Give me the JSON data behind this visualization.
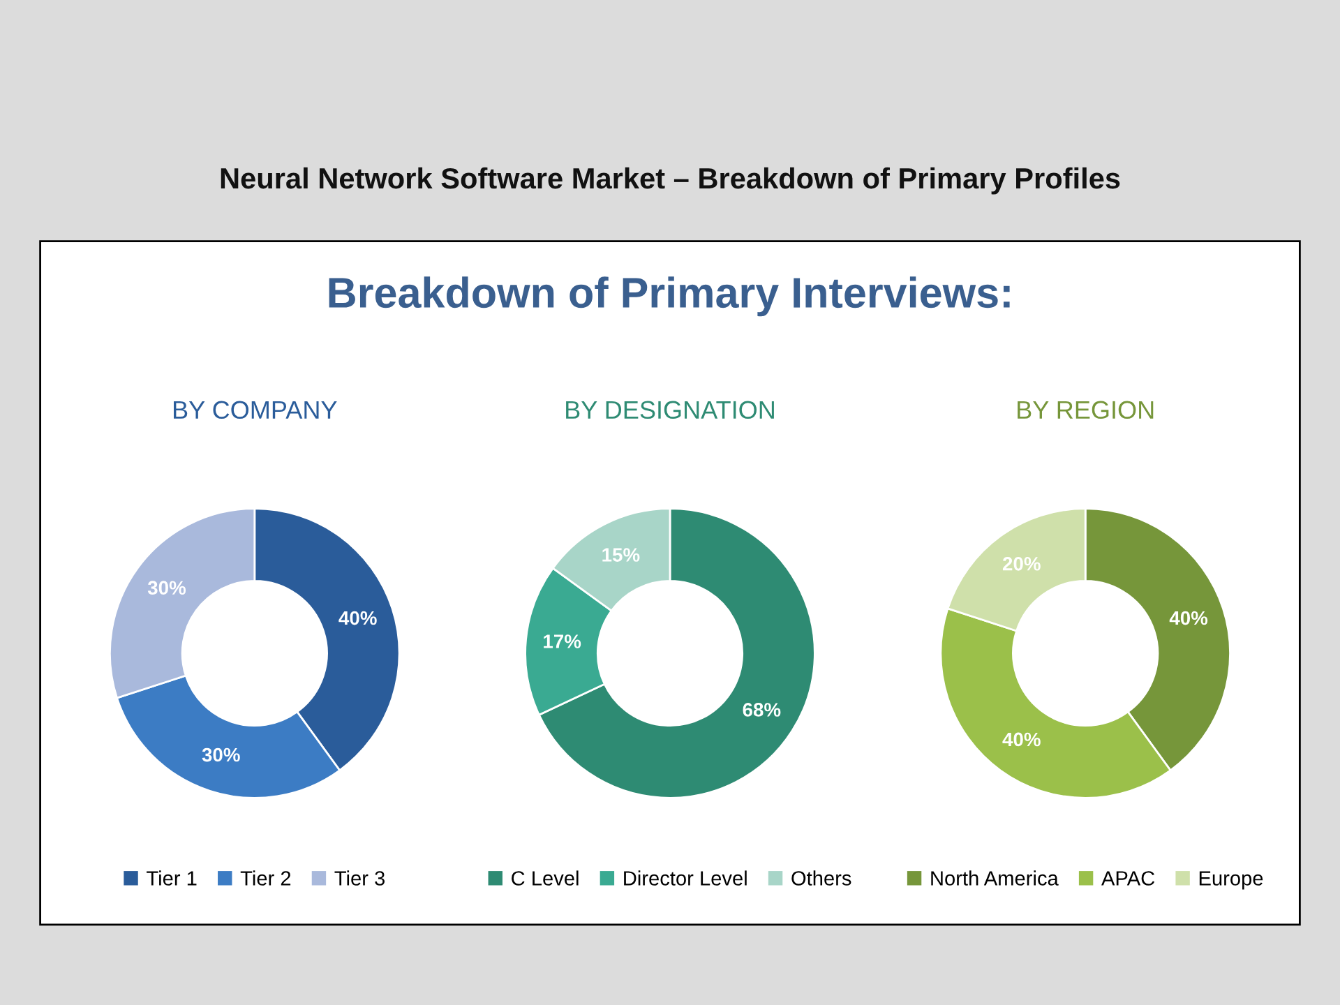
{
  "chart_data": [
    {
      "type": "donut",
      "title": "BY COMPANY",
      "annotations": [
        "Neural Network Software Market – Breakdown of Primary Profiles",
        "Breakdown of Primary Interviews:"
      ],
      "categories": [
        "Tier 1",
        "Tier 2",
        "Tier 3"
      ],
      "values": [
        40,
        30,
        30
      ],
      "value_labels": [
        "40%",
        "30%",
        "30%"
      ],
      "colors": [
        "#2a5c9a",
        "#3c7cc4",
        "#a9b9dc"
      ],
      "legend": "bottom"
    },
    {
      "type": "donut",
      "title": "BY DESIGNATION",
      "categories": [
        "C Level",
        "Director Level",
        "Others"
      ],
      "values": [
        68,
        17,
        15
      ],
      "value_labels": [
        "68%",
        "17%",
        "15%"
      ],
      "colors": [
        "#2e8b73",
        "#3aaa92",
        "#a8d5c8"
      ],
      "legend": "bottom"
    },
    {
      "type": "donut",
      "title": "BY REGION",
      "categories": [
        "North America",
        "APAC",
        "Europe"
      ],
      "values": [
        40,
        40,
        20
      ],
      "value_labels": [
        "40%",
        "40%",
        "20%"
      ],
      "colors": [
        "#76963a",
        "#9bc04a",
        "#cfe0aa"
      ],
      "legend": "bottom"
    }
  ]
}
